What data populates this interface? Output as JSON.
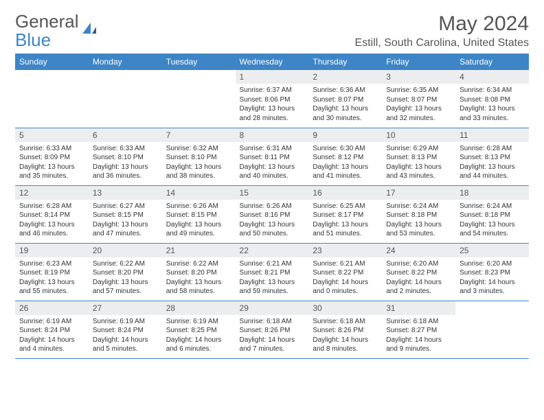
{
  "logo": {
    "text1": "General",
    "text2": "Blue"
  },
  "title": "May 2024",
  "location": "Estill, South Carolina, United States",
  "colors": {
    "header_bg": "#3d85c6",
    "header_text": "#ffffff",
    "daynum_bg": "#ecedef",
    "text": "#555555",
    "border": "#3d85c6"
  },
  "weekdays": [
    "Sunday",
    "Monday",
    "Tuesday",
    "Wednesday",
    "Thursday",
    "Friday",
    "Saturday"
  ],
  "weeks": [
    [
      {
        "n": "",
        "lines": []
      },
      {
        "n": "",
        "lines": []
      },
      {
        "n": "",
        "lines": []
      },
      {
        "n": "1",
        "lines": [
          "Sunrise: 6:37 AM",
          "Sunset: 8:06 PM",
          "Daylight: 13 hours and 28 minutes."
        ]
      },
      {
        "n": "2",
        "lines": [
          "Sunrise: 6:36 AM",
          "Sunset: 8:07 PM",
          "Daylight: 13 hours and 30 minutes."
        ]
      },
      {
        "n": "3",
        "lines": [
          "Sunrise: 6:35 AM",
          "Sunset: 8:07 PM",
          "Daylight: 13 hours and 32 minutes."
        ]
      },
      {
        "n": "4",
        "lines": [
          "Sunrise: 6:34 AM",
          "Sunset: 8:08 PM",
          "Daylight: 13 hours and 33 minutes."
        ]
      }
    ],
    [
      {
        "n": "5",
        "lines": [
          "Sunrise: 6:33 AM",
          "Sunset: 8:09 PM",
          "Daylight: 13 hours and 35 minutes."
        ]
      },
      {
        "n": "6",
        "lines": [
          "Sunrise: 6:33 AM",
          "Sunset: 8:10 PM",
          "Daylight: 13 hours and 36 minutes."
        ]
      },
      {
        "n": "7",
        "lines": [
          "Sunrise: 6:32 AM",
          "Sunset: 8:10 PM",
          "Daylight: 13 hours and 38 minutes."
        ]
      },
      {
        "n": "8",
        "lines": [
          "Sunrise: 6:31 AM",
          "Sunset: 8:11 PM",
          "Daylight: 13 hours and 40 minutes."
        ]
      },
      {
        "n": "9",
        "lines": [
          "Sunrise: 6:30 AM",
          "Sunset: 8:12 PM",
          "Daylight: 13 hours and 41 minutes."
        ]
      },
      {
        "n": "10",
        "lines": [
          "Sunrise: 6:29 AM",
          "Sunset: 8:13 PM",
          "Daylight: 13 hours and 43 minutes."
        ]
      },
      {
        "n": "11",
        "lines": [
          "Sunrise: 6:28 AM",
          "Sunset: 8:13 PM",
          "Daylight: 13 hours and 44 minutes."
        ]
      }
    ],
    [
      {
        "n": "12",
        "lines": [
          "Sunrise: 6:28 AM",
          "Sunset: 8:14 PM",
          "Daylight: 13 hours and 46 minutes."
        ]
      },
      {
        "n": "13",
        "lines": [
          "Sunrise: 6:27 AM",
          "Sunset: 8:15 PM",
          "Daylight: 13 hours and 47 minutes."
        ]
      },
      {
        "n": "14",
        "lines": [
          "Sunrise: 6:26 AM",
          "Sunset: 8:15 PM",
          "Daylight: 13 hours and 49 minutes."
        ]
      },
      {
        "n": "15",
        "lines": [
          "Sunrise: 6:26 AM",
          "Sunset: 8:16 PM",
          "Daylight: 13 hours and 50 minutes."
        ]
      },
      {
        "n": "16",
        "lines": [
          "Sunrise: 6:25 AM",
          "Sunset: 8:17 PM",
          "Daylight: 13 hours and 51 minutes."
        ]
      },
      {
        "n": "17",
        "lines": [
          "Sunrise: 6:24 AM",
          "Sunset: 8:18 PM",
          "Daylight: 13 hours and 53 minutes."
        ]
      },
      {
        "n": "18",
        "lines": [
          "Sunrise: 6:24 AM",
          "Sunset: 8:18 PM",
          "Daylight: 13 hours and 54 minutes."
        ]
      }
    ],
    [
      {
        "n": "19",
        "lines": [
          "Sunrise: 6:23 AM",
          "Sunset: 8:19 PM",
          "Daylight: 13 hours and 55 minutes."
        ]
      },
      {
        "n": "20",
        "lines": [
          "Sunrise: 6:22 AM",
          "Sunset: 8:20 PM",
          "Daylight: 13 hours and 57 minutes."
        ]
      },
      {
        "n": "21",
        "lines": [
          "Sunrise: 6:22 AM",
          "Sunset: 8:20 PM",
          "Daylight: 13 hours and 58 minutes."
        ]
      },
      {
        "n": "22",
        "lines": [
          "Sunrise: 6:21 AM",
          "Sunset: 8:21 PM",
          "Daylight: 13 hours and 59 minutes."
        ]
      },
      {
        "n": "23",
        "lines": [
          "Sunrise: 6:21 AM",
          "Sunset: 8:22 PM",
          "Daylight: 14 hours and 0 minutes."
        ]
      },
      {
        "n": "24",
        "lines": [
          "Sunrise: 6:20 AM",
          "Sunset: 8:22 PM",
          "Daylight: 14 hours and 2 minutes."
        ]
      },
      {
        "n": "25",
        "lines": [
          "Sunrise: 6:20 AM",
          "Sunset: 8:23 PM",
          "Daylight: 14 hours and 3 minutes."
        ]
      }
    ],
    [
      {
        "n": "26",
        "lines": [
          "Sunrise: 6:19 AM",
          "Sunset: 8:24 PM",
          "Daylight: 14 hours and 4 minutes."
        ]
      },
      {
        "n": "27",
        "lines": [
          "Sunrise: 6:19 AM",
          "Sunset: 8:24 PM",
          "Daylight: 14 hours and 5 minutes."
        ]
      },
      {
        "n": "28",
        "lines": [
          "Sunrise: 6:19 AM",
          "Sunset: 8:25 PM",
          "Daylight: 14 hours and 6 minutes."
        ]
      },
      {
        "n": "29",
        "lines": [
          "Sunrise: 6:18 AM",
          "Sunset: 8:26 PM",
          "Daylight: 14 hours and 7 minutes."
        ]
      },
      {
        "n": "30",
        "lines": [
          "Sunrise: 6:18 AM",
          "Sunset: 8:26 PM",
          "Daylight: 14 hours and 8 minutes."
        ]
      },
      {
        "n": "31",
        "lines": [
          "Sunrise: 6:18 AM",
          "Sunset: 8:27 PM",
          "Daylight: 14 hours and 9 minutes."
        ]
      },
      {
        "n": "",
        "lines": []
      }
    ]
  ]
}
